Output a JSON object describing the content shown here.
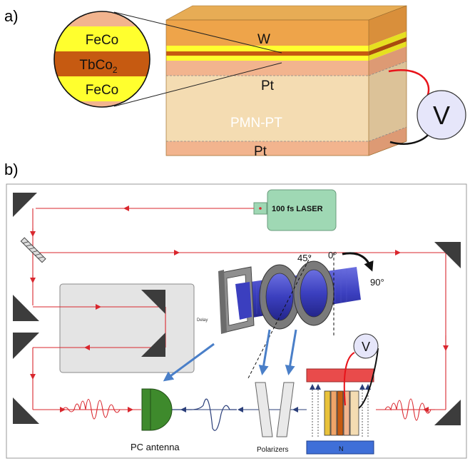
{
  "panel_a": {
    "panel_label": "a)",
    "stack": {
      "top_layer": "W",
      "mid_electrode": "Pt",
      "substrate": "PMN-PT",
      "bottom_electrode": "Pt"
    },
    "zoom": {
      "layer_top": "FeCo",
      "layer_mid_base": "TbCo",
      "layer_mid_sub": "2",
      "layer_bottom": "FeCo"
    },
    "voltmeter": "V",
    "colors": {
      "w_top": "#e9a94a",
      "w_front": "#eda24a",
      "feco": "#ffff2e",
      "tbco": "#c65a11",
      "pt": "#f2b48e",
      "pmnpt": "#f4dcb2",
      "voltmeter_fill": "#e6e6fa",
      "wire_red": "#e8141b"
    }
  },
  "panel_b": {
    "panel_label": "b)",
    "laser": "100 fs LASER",
    "delay": "Delay",
    "angle_45": "45°",
    "angle_0": "0°",
    "angle_90": "90°",
    "pc_antenna": "PC antenna",
    "polarizers": "Polarizers",
    "magnet_bottom": "N",
    "voltmeter": "V",
    "colors": {
      "beam": "#d9272e",
      "laser_box": "#9fd8b4",
      "delay_box": "#e4e4e4",
      "magnet_top": "#e94b4b",
      "magnet_bottom": "#3f6fd8",
      "magnet_coil": "#2a46c8",
      "antenna": "#3e8a2c",
      "arrows_blue": "#4a7fc8",
      "mirror": "#3c3c3c"
    }
  }
}
